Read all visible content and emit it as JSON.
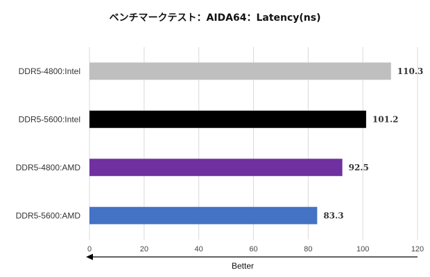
{
  "chart_data": {
    "type": "bar",
    "orientation": "horizontal",
    "title": "ベンチマークテスト：AIDA64：Latency(ns)",
    "categories": [
      "DDR5-4800:Intel",
      "DDR5-5600:Intel",
      "DDR5-4800:AMD",
      "DDR5-5600:AMD"
    ],
    "values": [
      110.3,
      101.2,
      92.5,
      83.3
    ],
    "value_labels": [
      "110.3",
      "101.2",
      "92.5",
      "83.3"
    ],
    "colors": [
      "#bfbfbf",
      "#000000",
      "#7030a0",
      "#4472c4"
    ],
    "xlim": [
      0,
      120
    ],
    "ticks": [
      "0",
      "20",
      "40",
      "60",
      "80",
      "100",
      "120"
    ],
    "grid": true,
    "xlabel": "",
    "ylabel": "",
    "annotation": {
      "text": "Better",
      "arrow_direction": "left"
    }
  }
}
